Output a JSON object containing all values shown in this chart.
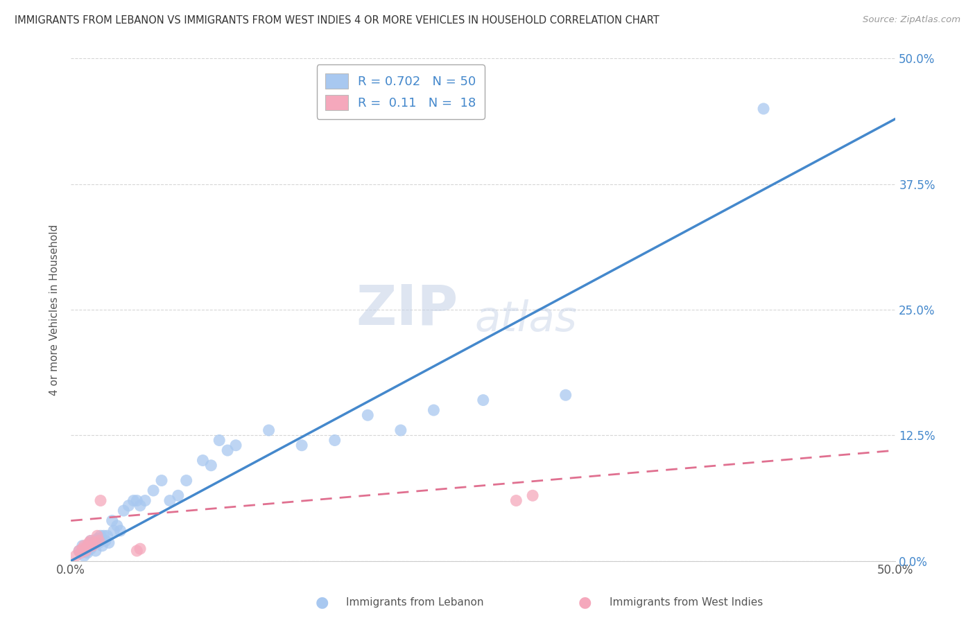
{
  "title": "IMMIGRANTS FROM LEBANON VS IMMIGRANTS FROM WEST INDIES 4 OR MORE VEHICLES IN HOUSEHOLD CORRELATION CHART",
  "source": "Source: ZipAtlas.com",
  "xlabel_lebanon": "Immigrants from Lebanon",
  "xlabel_west_indies": "Immigrants from West Indies",
  "ylabel": "4 or more Vehicles in Household",
  "xlim": [
    0.0,
    0.5
  ],
  "ylim": [
    0.0,
    0.5
  ],
  "xticks": [
    0.0,
    0.125,
    0.25,
    0.375,
    0.5
  ],
  "yticks": [
    0.0,
    0.125,
    0.25,
    0.375,
    0.5
  ],
  "ytick_labels": [
    "0.0%",
    "12.5%",
    "25.0%",
    "37.5%",
    "50.0%"
  ],
  "xtick_labels_show": [
    "0.0%",
    "",
    "",
    "",
    "50.0%"
  ],
  "lebanon_color": "#a8c8f0",
  "west_indies_color": "#f5a8bc",
  "lebanon_line_color": "#4488cc",
  "west_indies_line_color": "#e07090",
  "R_lebanon": 0.702,
  "N_lebanon": 50,
  "R_west_indies": 0.11,
  "N_west_indies": 18,
  "watermark_zip": "ZIP",
  "watermark_atlas": "atlas",
  "lebanon_scatter_x": [
    0.005,
    0.007,
    0.008,
    0.009,
    0.01,
    0.01,
    0.011,
    0.012,
    0.012,
    0.013,
    0.014,
    0.015,
    0.015,
    0.016,
    0.017,
    0.018,
    0.019,
    0.02,
    0.021,
    0.022,
    0.023,
    0.025,
    0.026,
    0.028,
    0.03,
    0.032,
    0.035,
    0.038,
    0.04,
    0.042,
    0.045,
    0.05,
    0.055,
    0.06,
    0.065,
    0.07,
    0.08,
    0.085,
    0.09,
    0.095,
    0.1,
    0.12,
    0.14,
    0.16,
    0.18,
    0.2,
    0.22,
    0.25,
    0.3,
    0.42
  ],
  "lebanon_scatter_y": [
    0.01,
    0.015,
    0.005,
    0.01,
    0.01,
    0.008,
    0.015,
    0.012,
    0.02,
    0.015,
    0.018,
    0.02,
    0.01,
    0.022,
    0.018,
    0.025,
    0.015,
    0.025,
    0.02,
    0.025,
    0.018,
    0.04,
    0.03,
    0.035,
    0.03,
    0.05,
    0.055,
    0.06,
    0.06,
    0.055,
    0.06,
    0.07,
    0.08,
    0.06,
    0.065,
    0.08,
    0.1,
    0.095,
    0.12,
    0.11,
    0.115,
    0.13,
    0.115,
    0.12,
    0.145,
    0.13,
    0.15,
    0.16,
    0.165,
    0.45
  ],
  "west_indies_scatter_x": [
    0.003,
    0.005,
    0.006,
    0.007,
    0.008,
    0.009,
    0.01,
    0.011,
    0.012,
    0.013,
    0.015,
    0.016,
    0.017,
    0.018,
    0.04,
    0.042,
    0.27,
    0.28
  ],
  "west_indies_scatter_y": [
    0.005,
    0.01,
    0.008,
    0.012,
    0.015,
    0.01,
    0.015,
    0.018,
    0.02,
    0.015,
    0.018,
    0.025,
    0.02,
    0.06,
    0.01,
    0.012,
    0.06,
    0.065
  ],
  "lebanon_line_x": [
    0.0,
    0.5
  ],
  "lebanon_line_y": [
    0.0,
    0.44
  ],
  "west_indies_line_x": [
    0.0,
    0.5
  ],
  "west_indies_line_y": [
    0.04,
    0.11
  ]
}
